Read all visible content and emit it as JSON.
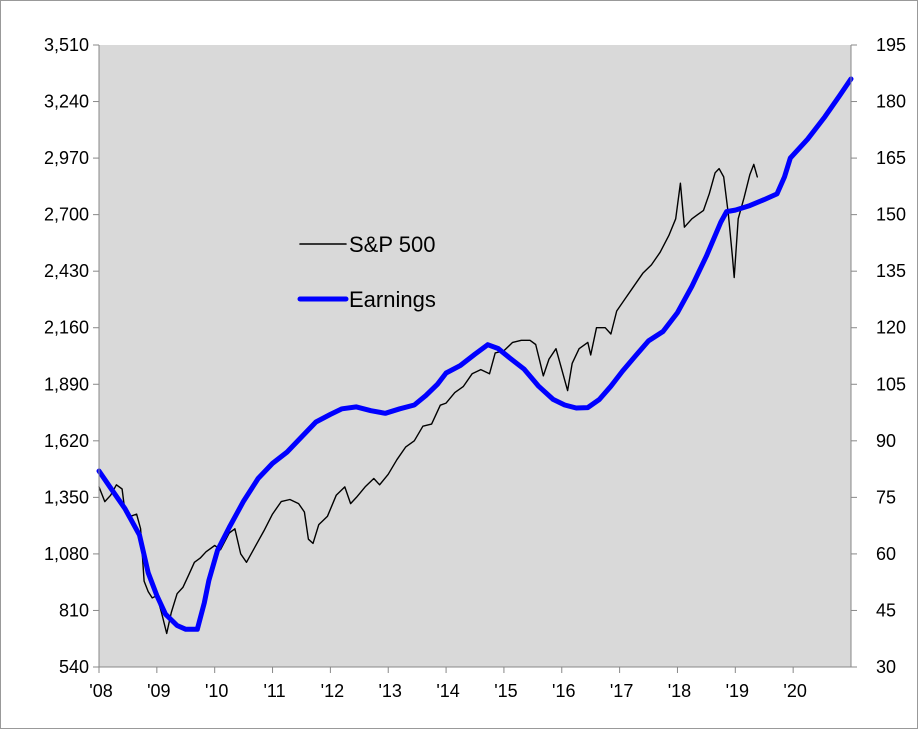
{
  "chart_data": {
    "type": "line",
    "title": "",
    "xlabel": "",
    "ylabel": "",
    "y2label": "",
    "grid": false,
    "background": "#d9d9d9",
    "x_range": [
      2008.0,
      2021.0
    ],
    "x_ticks": [
      {
        "x": 2008,
        "label": "'08"
      },
      {
        "x": 2009,
        "label": "'09"
      },
      {
        "x": 2010,
        "label": "'10"
      },
      {
        "x": 2011,
        "label": "'11"
      },
      {
        "x": 2012,
        "label": "'12"
      },
      {
        "x": 2013,
        "label": "'13"
      },
      {
        "x": 2014,
        "label": "'14"
      },
      {
        "x": 2015,
        "label": "'15"
      },
      {
        "x": 2016,
        "label": "'16"
      },
      {
        "x": 2017,
        "label": "'17"
      },
      {
        "x": 2018,
        "label": "'18"
      },
      {
        "x": 2019,
        "label": "'19"
      },
      {
        "x": 2020,
        "label": "'20"
      }
    ],
    "y_left": {
      "range": [
        540,
        3510
      ],
      "ticks": [
        540,
        810,
        1080,
        1350,
        1620,
        1890,
        2160,
        2430,
        2700,
        2970,
        3240,
        3510
      ],
      "labels": [
        "540",
        "810",
        "1,080",
        "1,350",
        "1,620",
        "1,890",
        "2,160",
        "2,430",
        "2,700",
        "2,970",
        "3,240",
        "3,510"
      ]
    },
    "y_right": {
      "range": [
        30,
        195
      ],
      "ticks": [
        30,
        45,
        60,
        75,
        90,
        105,
        120,
        135,
        150,
        165,
        180,
        195
      ],
      "labels": [
        "30",
        "45",
        "60",
        "75",
        "90",
        "105",
        "120",
        "135",
        "150",
        "165",
        "180",
        "195"
      ]
    },
    "legend": {
      "placement": "upper-left inside",
      "items": [
        {
          "label": "S&P 500",
          "color": "#000000",
          "style": "thin"
        },
        {
          "label": "Earnings",
          "color": "#0000ff",
          "style": "thick"
        }
      ]
    },
    "series": [
      {
        "name": "S&P 500",
        "axis": "left",
        "color": "#000000",
        "points": [
          [
            2008.0,
            1400
          ],
          [
            2008.1,
            1330
          ],
          [
            2008.2,
            1360
          ],
          [
            2008.3,
            1410
          ],
          [
            2008.4,
            1390
          ],
          [
            2008.45,
            1280
          ],
          [
            2008.55,
            1260
          ],
          [
            2008.65,
            1270
          ],
          [
            2008.72,
            1200
          ],
          [
            2008.78,
            950
          ],
          [
            2008.85,
            900
          ],
          [
            2008.92,
            870
          ],
          [
            2009.0,
            880
          ],
          [
            2009.08,
            800
          ],
          [
            2009.17,
            700
          ],
          [
            2009.25,
            800
          ],
          [
            2009.35,
            890
          ],
          [
            2009.45,
            920
          ],
          [
            2009.55,
            980
          ],
          [
            2009.65,
            1040
          ],
          [
            2009.75,
            1060
          ],
          [
            2009.85,
            1090
          ],
          [
            2010.0,
            1120
          ],
          [
            2010.1,
            1100
          ],
          [
            2010.25,
            1180
          ],
          [
            2010.35,
            1200
          ],
          [
            2010.45,
            1080
          ],
          [
            2010.55,
            1040
          ],
          [
            2010.65,
            1090
          ],
          [
            2010.75,
            1140
          ],
          [
            2010.85,
            1190
          ],
          [
            2011.0,
            1270
          ],
          [
            2011.15,
            1330
          ],
          [
            2011.3,
            1340
          ],
          [
            2011.45,
            1320
          ],
          [
            2011.55,
            1280
          ],
          [
            2011.62,
            1150
          ],
          [
            2011.7,
            1130
          ],
          [
            2011.8,
            1220
          ],
          [
            2011.95,
            1260
          ],
          [
            2012.1,
            1360
          ],
          [
            2012.25,
            1400
          ],
          [
            2012.35,
            1320
          ],
          [
            2012.45,
            1350
          ],
          [
            2012.6,
            1400
          ],
          [
            2012.75,
            1440
          ],
          [
            2012.85,
            1410
          ],
          [
            2013.0,
            1460
          ],
          [
            2013.15,
            1530
          ],
          [
            2013.3,
            1590
          ],
          [
            2013.45,
            1620
          ],
          [
            2013.6,
            1690
          ],
          [
            2013.75,
            1700
          ],
          [
            2013.9,
            1790
          ],
          [
            2014.0,
            1800
          ],
          [
            2014.15,
            1850
          ],
          [
            2014.3,
            1880
          ],
          [
            2014.45,
            1940
          ],
          [
            2014.6,
            1960
          ],
          [
            2014.75,
            1940
          ],
          [
            2014.85,
            2040
          ],
          [
            2015.0,
            2050
          ],
          [
            2015.15,
            2090
          ],
          [
            2015.3,
            2100
          ],
          [
            2015.45,
            2100
          ],
          [
            2015.55,
            2080
          ],
          [
            2015.62,
            2000
          ],
          [
            2015.68,
            1930
          ],
          [
            2015.78,
            2010
          ],
          [
            2015.9,
            2060
          ],
          [
            2016.0,
            1960
          ],
          [
            2016.1,
            1860
          ],
          [
            2016.18,
            1990
          ],
          [
            2016.3,
            2060
          ],
          [
            2016.45,
            2090
          ],
          [
            2016.5,
            2030
          ],
          [
            2016.6,
            2160
          ],
          [
            2016.75,
            2160
          ],
          [
            2016.85,
            2130
          ],
          [
            2016.95,
            2240
          ],
          [
            2017.1,
            2300
          ],
          [
            2017.25,
            2360
          ],
          [
            2017.4,
            2420
          ],
          [
            2017.55,
            2460
          ],
          [
            2017.7,
            2520
          ],
          [
            2017.85,
            2600
          ],
          [
            2017.97,
            2680
          ],
          [
            2018.05,
            2850
          ],
          [
            2018.12,
            2640
          ],
          [
            2018.25,
            2680
          ],
          [
            2018.35,
            2700
          ],
          [
            2018.45,
            2720
          ],
          [
            2018.55,
            2800
          ],
          [
            2018.65,
            2900
          ],
          [
            2018.72,
            2920
          ],
          [
            2018.8,
            2880
          ],
          [
            2018.88,
            2700
          ],
          [
            2018.95,
            2500
          ],
          [
            2018.98,
            2400
          ],
          [
            2019.05,
            2680
          ],
          [
            2019.15,
            2780
          ],
          [
            2019.25,
            2890
          ],
          [
            2019.32,
            2940
          ],
          [
            2019.38,
            2880
          ]
        ]
      },
      {
        "name": "Earnings",
        "axis": "right",
        "color": "#0000ff",
        "points": [
          [
            2008.0,
            82
          ],
          [
            2008.2,
            77.5
          ],
          [
            2008.45,
            72
          ],
          [
            2008.7,
            65
          ],
          [
            2008.85,
            55
          ],
          [
            2009.0,
            49
          ],
          [
            2009.15,
            44
          ],
          [
            2009.35,
            41
          ],
          [
            2009.5,
            40
          ],
          [
            2009.7,
            40
          ],
          [
            2009.82,
            47
          ],
          [
            2009.9,
            53
          ],
          [
            2010.05,
            61
          ],
          [
            2010.25,
            67
          ],
          [
            2010.5,
            74
          ],
          [
            2010.75,
            80
          ],
          [
            2011.0,
            84
          ],
          [
            2011.25,
            87
          ],
          [
            2011.5,
            91
          ],
          [
            2011.75,
            95
          ],
          [
            2012.0,
            97
          ],
          [
            2012.2,
            98.5
          ],
          [
            2012.45,
            99
          ],
          [
            2012.7,
            98
          ],
          [
            2012.95,
            97.3
          ],
          [
            2013.2,
            98.5
          ],
          [
            2013.45,
            99.5
          ],
          [
            2013.65,
            102
          ],
          [
            2013.85,
            105
          ],
          [
            2014.0,
            108
          ],
          [
            2014.25,
            110
          ],
          [
            2014.5,
            113
          ],
          [
            2014.72,
            115.5
          ],
          [
            2014.9,
            114.5
          ],
          [
            2015.1,
            112
          ],
          [
            2015.35,
            109
          ],
          [
            2015.6,
            104.5
          ],
          [
            2015.85,
            101
          ],
          [
            2016.05,
            99.5
          ],
          [
            2016.25,
            98.7
          ],
          [
            2016.45,
            98.8
          ],
          [
            2016.65,
            101
          ],
          [
            2016.85,
            104.5
          ],
          [
            2017.05,
            108.5
          ],
          [
            2017.3,
            113
          ],
          [
            2017.5,
            116.5
          ],
          [
            2017.75,
            119
          ],
          [
            2018.0,
            124
          ],
          [
            2018.25,
            131
          ],
          [
            2018.5,
            139
          ],
          [
            2018.75,
            148
          ],
          [
            2018.85,
            150.8
          ],
          [
            2019.0,
            151.2
          ],
          [
            2019.25,
            152.4
          ],
          [
            2019.5,
            154
          ],
          [
            2019.72,
            155.5
          ],
          [
            2019.85,
            160
          ],
          [
            2019.95,
            165
          ],
          [
            2020.25,
            170
          ],
          [
            2020.55,
            176
          ],
          [
            2020.8,
            181.5
          ],
          [
            2021.0,
            186
          ]
        ]
      }
    ]
  }
}
